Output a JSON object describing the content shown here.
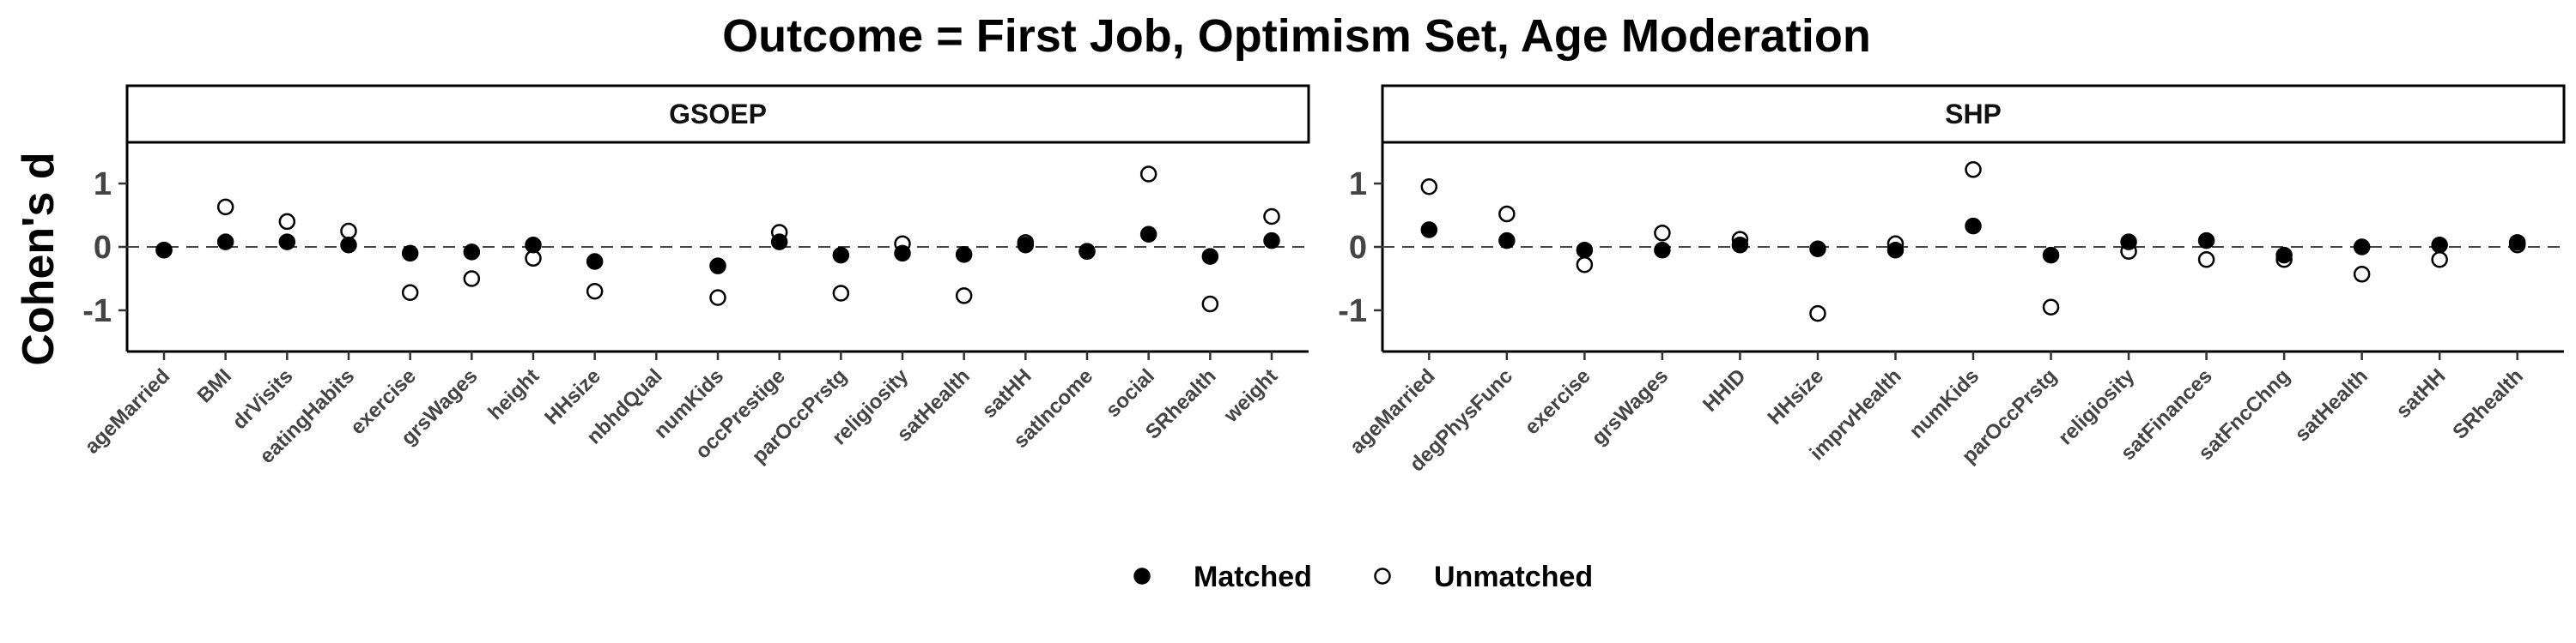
{
  "chart_data": {
    "type": "scatter",
    "title": "Outcome = First Job, Optimism Set, Age Moderation",
    "ylabel": "Cohen's d",
    "xlabel": "",
    "ylim": [
      -1.65,
      1.65
    ],
    "yticks": [
      -1,
      0,
      1
    ],
    "reference_line": 0,
    "legend_position": "bottom",
    "series_names": [
      "Matched",
      "Unmatched"
    ],
    "panels": [
      {
        "name": "GSOEP",
        "categories": [
          "ageMarried",
          "BMI",
          "drVisits",
          "eatingHabits",
          "exercise",
          "grsWages",
          "height",
          "HHsize",
          "nbhdQual",
          "numKids",
          "occPrestige",
          "parOccPrstg",
          "religiosity",
          "satHealth",
          "satHH",
          "satIncome",
          "social",
          "SRhealth",
          "weight"
        ],
        "series": [
          {
            "name": "Matched",
            "values": [
              -0.05,
              0.08,
              0.08,
              0.03,
              -0.1,
              -0.08,
              0.03,
              -0.23,
              null,
              -0.3,
              0.08,
              -0.13,
              -0.1,
              -0.12,
              0.03,
              -0.07,
              0.2,
              -0.15,
              0.1
            ]
          },
          {
            "name": "Unmatched",
            "values": [
              -0.05,
              0.63,
              0.4,
              0.25,
              -0.72,
              -0.5,
              -0.18,
              -0.7,
              null,
              -0.8,
              0.23,
              -0.73,
              0.05,
              -0.77,
              0.07,
              -0.07,
              1.15,
              -0.9,
              0.48
            ]
          }
        ]
      },
      {
        "name": "SHP",
        "categories": [
          "ageMarried",
          "degPhysFunc",
          "exercise",
          "grsWages",
          "HHID",
          "HHsize",
          "imprvHealth",
          "numKids",
          "parOccPrstg",
          "religiosity",
          "satFinances",
          "satFncChng",
          "satHealth",
          "satHH",
          "SRhealth"
        ],
        "series": [
          {
            "name": "Matched",
            "values": [
              0.27,
              0.1,
              -0.05,
              -0.05,
              0.03,
              -0.03,
              -0.05,
              0.33,
              -0.13,
              0.08,
              0.1,
              -0.13,
              0.0,
              0.03,
              0.07
            ]
          },
          {
            "name": "Unmatched",
            "values": [
              0.95,
              0.52,
              -0.28,
              0.22,
              0.12,
              -1.05,
              0.05,
              1.22,
              -0.95,
              -0.07,
              -0.2,
              -0.2,
              -0.43,
              -0.2,
              0.03
            ]
          }
        ]
      }
    ]
  }
}
